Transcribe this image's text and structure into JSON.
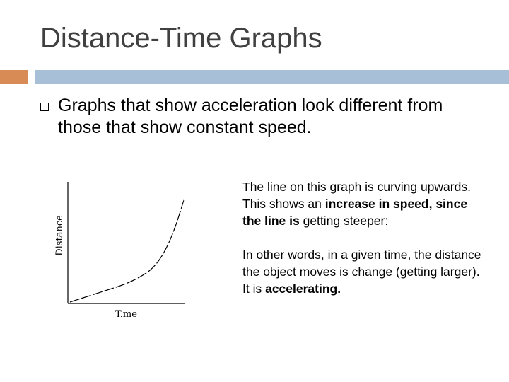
{
  "slide": {
    "title": "Distance-Time Graphs"
  },
  "bullet": {
    "text": "Graphs that show acceleration look different from those that show constant speed."
  },
  "description": {
    "p1": {
      "t1": "The line on this graph is curving upwards. This shows an ",
      "b1": "increase in speed, since the line is",
      "t2": " getting steeper:"
    },
    "p2": {
      "t1": "In other words, in a given time, the distance the object moves is change (getting larger). It is ",
      "b1": "accelerating."
    }
  },
  "chart_data": {
    "type": "line",
    "xlabel": "T.me",
    "ylabel": "Distance",
    "line_style": "dashed",
    "shape": "curving upwards (increasing slope)",
    "x": [
      0,
      1,
      2,
      3,
      4,
      5,
      6,
      6.5,
      7,
      7.5,
      8,
      8.5,
      9
    ],
    "y": [
      0,
      0.4,
      0.8,
      1.2,
      1.6,
      2.1,
      2.8,
      3.3,
      4.0,
      5.0,
      6.3,
      8.0,
      10.0
    ],
    "grid": false
  }
}
